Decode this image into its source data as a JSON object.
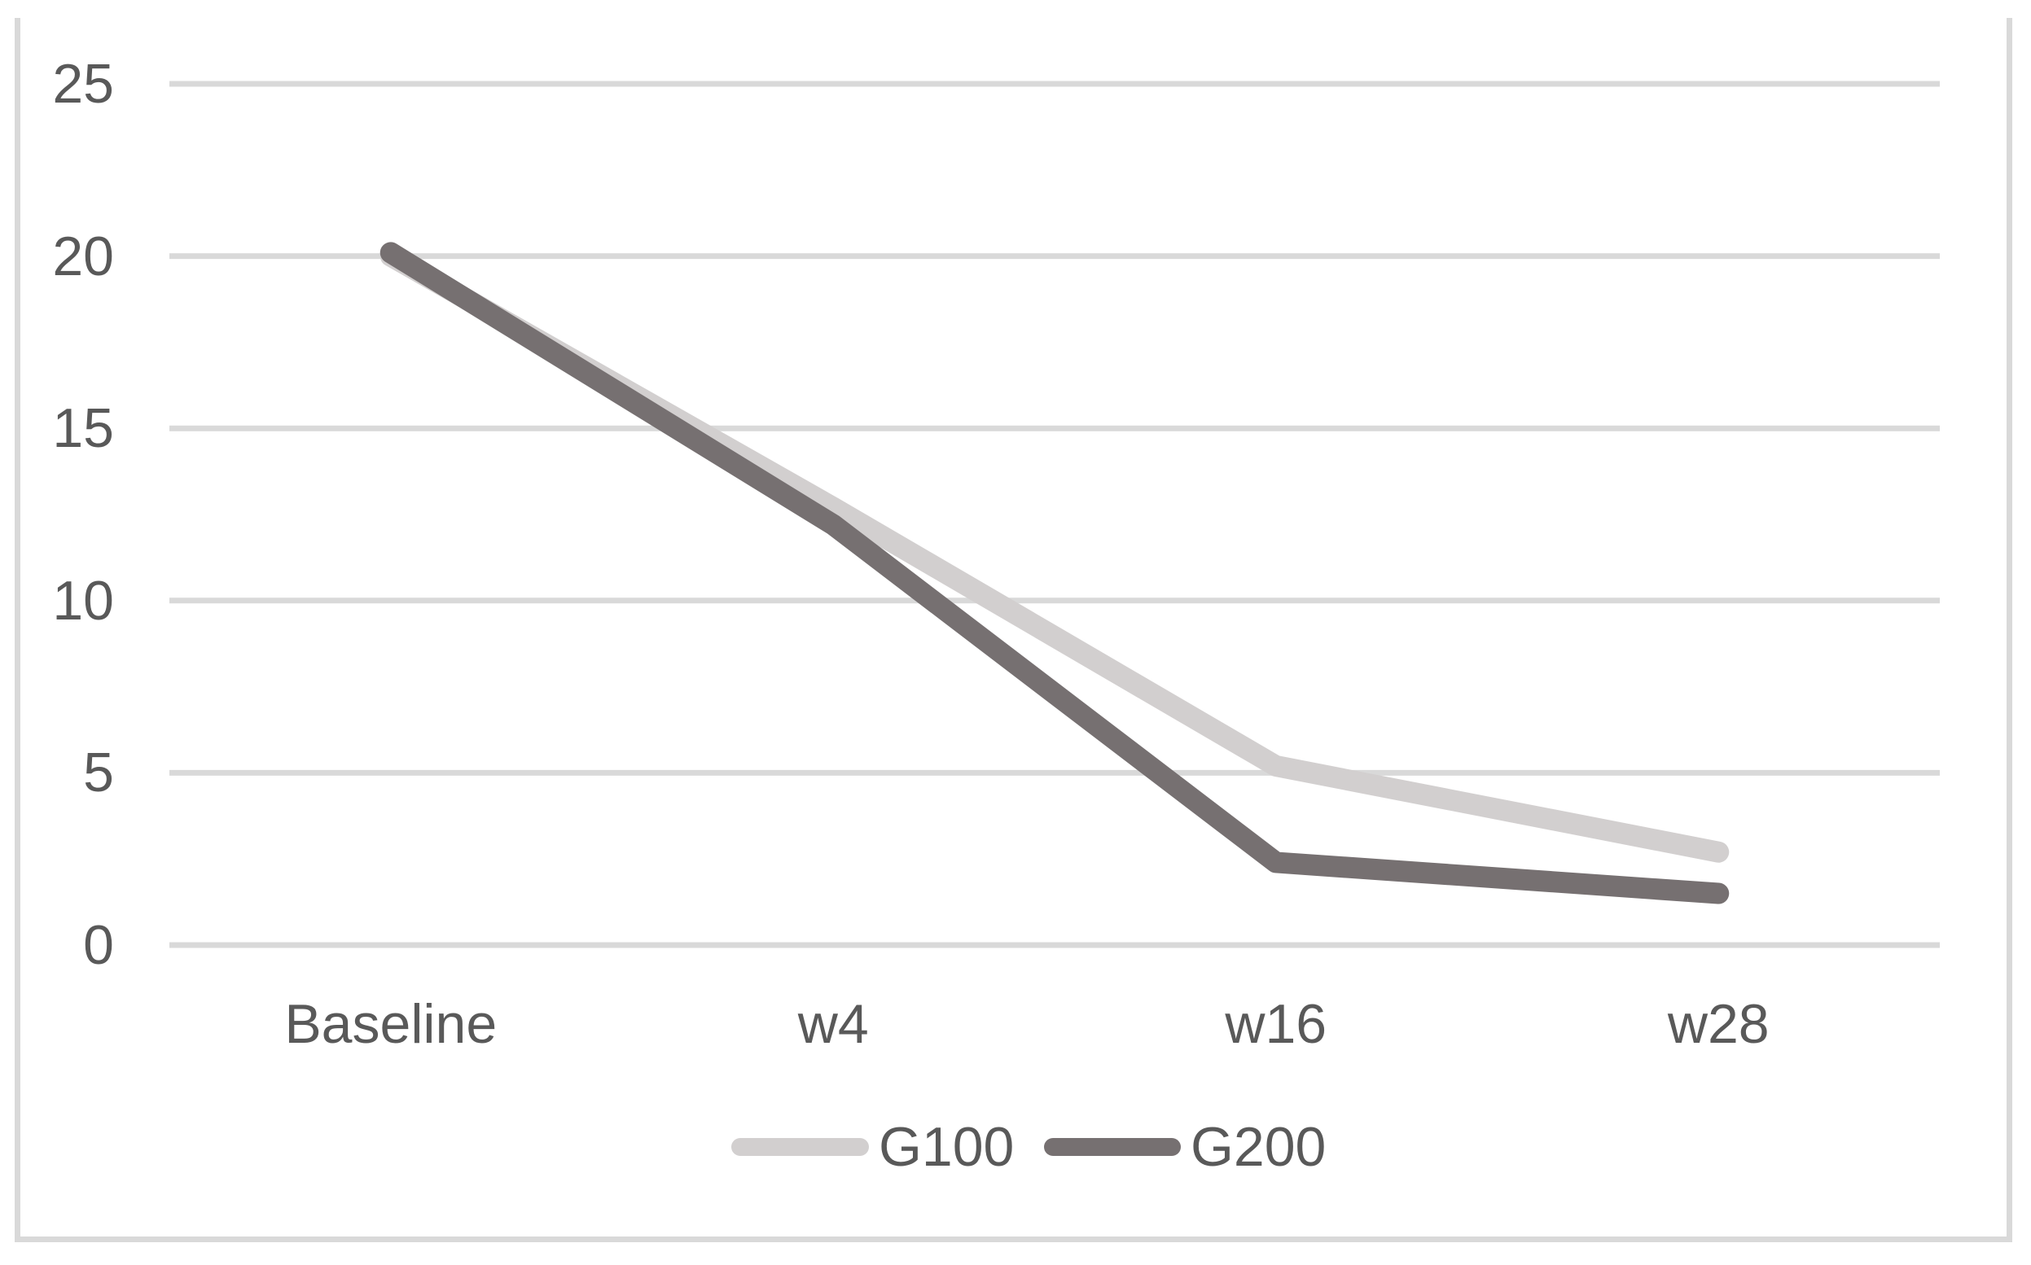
{
  "chart_data": {
    "type": "line",
    "title": "",
    "xlabel": "",
    "ylabel": "",
    "categories": [
      "Baseline",
      "w4",
      "w16",
      "w28"
    ],
    "series": [
      {
        "name": "G100",
        "color": "#d2cfcf",
        "values": [
          20.0,
          12.7,
          5.2,
          2.7
        ]
      },
      {
        "name": "G200",
        "color": "#767071",
        "values": [
          20.1,
          12.2,
          2.4,
          1.5
        ]
      }
    ],
    "ylim": [
      0,
      25
    ],
    "ytick_step": 5,
    "ytick_labels": [
      "0",
      "5",
      "10",
      "15",
      "20",
      "25"
    ],
    "grid": true,
    "legend_position": "bottom",
    "colors": {
      "gridline": "#d9d9d9",
      "frame_border": "#d9d9d9",
      "axis_text": "#595959",
      "background": "#ffffff"
    }
  }
}
